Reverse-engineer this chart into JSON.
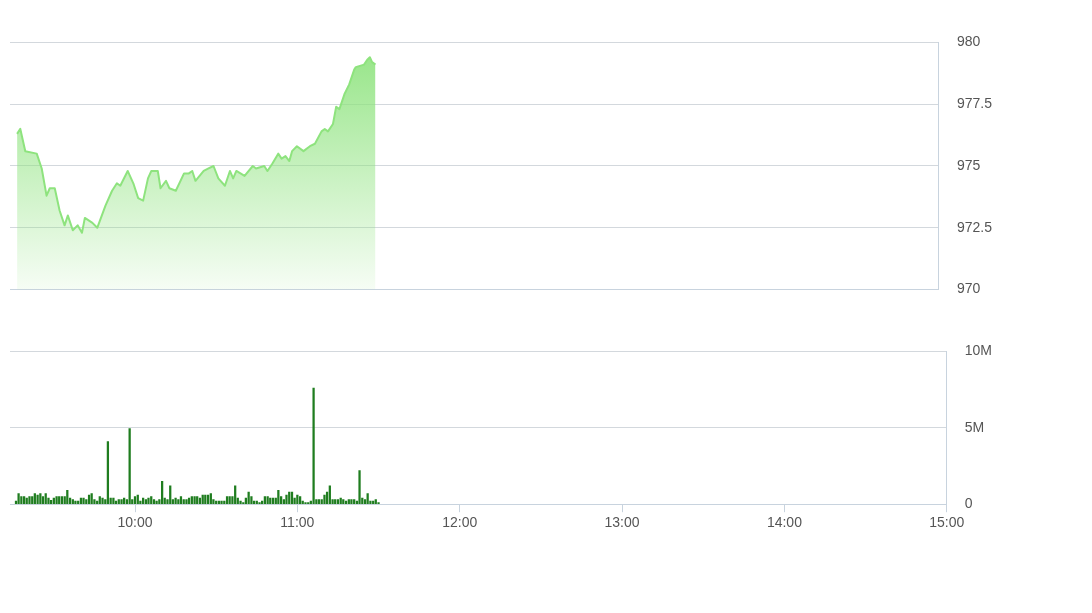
{
  "chart_data": [
    {
      "type": "area",
      "tick_labels": "y",
      "grid": "y",
      "xlim": [
        9.23,
        15
      ],
      "ylim": [
        970,
        980
      ],
      "yticks": [
        970,
        972.5,
        975,
        977.5,
        980
      ],
      "x": [
        9.274,
        9.294,
        9.325,
        9.396,
        9.427,
        9.457,
        9.477,
        9.508,
        9.538,
        9.569,
        9.589,
        9.62,
        9.65,
        9.677,
        9.695,
        9.742,
        9.772,
        9.823,
        9.864,
        9.894,
        9.915,
        9.961,
        9.996,
        10.026,
        10.057,
        10.087,
        10.108,
        10.148,
        10.165,
        10.199,
        10.22,
        10.26,
        10.311,
        10.341,
        10.362,
        10.382,
        10.433,
        10.463,
        10.494,
        10.524,
        10.565,
        10.596,
        10.616,
        10.636,
        10.687,
        10.738,
        10.758,
        10.809,
        10.829,
        10.86,
        10.896,
        10.917,
        10.941,
        10.965,
        10.982,
        11.012,
        11.053,
        11.093,
        11.124,
        11.165,
        11.185,
        11.205,
        11.236,
        11.256,
        11.276,
        11.307,
        11.337,
        11.368,
        11.378,
        11.429,
        11.449,
        11.465,
        11.479,
        11.5
      ],
      "series": [
        {
          "color": "#8ee37e",
          "values": [
            976.3,
            976.5,
            975.6,
            975.5,
            974.9,
            973.8,
            974.1,
            974.1,
            973.2,
            972.6,
            973,
            972.4,
            972.6,
            972.3,
            972.9,
            972.7,
            972.5,
            973.4,
            974,
            974.3,
            974.2,
            974.8,
            974.3,
            973.7,
            973.6,
            974.5,
            974.8,
            974.8,
            974.1,
            974.4,
            974.1,
            974,
            974.7,
            974.7,
            974.8,
            974.4,
            974.8,
            974.9,
            975,
            974.5,
            974.2,
            974.8,
            974.5,
            974.8,
            974.6,
            975,
            974.9,
            975,
            974.8,
            975.1,
            975.5,
            975.3,
            975.4,
            975.2,
            975.6,
            975.8,
            975.6,
            975.8,
            975.9,
            976.4,
            976.5,
            976.4,
            976.7,
            977.4,
            977.3,
            977.9,
            978.3,
            978.9,
            979,
            979.1,
            979.3,
            979.4,
            979.2,
            979.1
          ]
        }
      ]
    },
    {
      "type": "bar",
      "grid": "y",
      "xlim": [
        9.23,
        15
      ],
      "xticks": [
        {
          "value": 10,
          "label": "10:00"
        },
        {
          "value": 11,
          "label": "11:00"
        },
        {
          "value": 12,
          "label": "12:00"
        },
        {
          "value": 13,
          "label": "13:00"
        },
        {
          "value": 14,
          "label": "14:00"
        },
        {
          "value": 15,
          "label": "15:00"
        }
      ],
      "ylim": [
        0,
        10
      ],
      "yticks": [
        {
          "value": 0,
          "label": "0"
        },
        {
          "value": 5,
          "label": "5M"
        },
        {
          "value": 10,
          "label": "10M"
        }
      ],
      "x": [
        9.267,
        9.283,
        9.3,
        9.317,
        9.333,
        9.35,
        9.367,
        9.383,
        9.4,
        9.417,
        9.433,
        9.45,
        9.467,
        9.483,
        9.5,
        9.517,
        9.533,
        9.55,
        9.567,
        9.583,
        9.6,
        9.617,
        9.633,
        9.65,
        9.667,
        9.683,
        9.7,
        9.717,
        9.733,
        9.75,
        9.767,
        9.783,
        9.8,
        9.817,
        9.833,
        9.85,
        9.867,
        9.883,
        9.9,
        9.917,
        9.933,
        9.95,
        9.967,
        9.983,
        10,
        10.017,
        10.033,
        10.05,
        10.067,
        10.083,
        10.1,
        10.117,
        10.133,
        10.15,
        10.167,
        10.183,
        10.2,
        10.217,
        10.233,
        10.25,
        10.267,
        10.283,
        10.3,
        10.317,
        10.333,
        10.35,
        10.367,
        10.383,
        10.4,
        10.417,
        10.433,
        10.45,
        10.467,
        10.483,
        10.5,
        10.517,
        10.533,
        10.55,
        10.567,
        10.583,
        10.6,
        10.617,
        10.633,
        10.65,
        10.667,
        10.683,
        10.7,
        10.717,
        10.733,
        10.75,
        10.767,
        10.783,
        10.8,
        10.817,
        10.833,
        10.85,
        10.867,
        10.883,
        10.9,
        10.917,
        10.933,
        10.95,
        10.967,
        10.983,
        11,
        11.017,
        11.033,
        11.05,
        11.067,
        11.083,
        11.1,
        11.117,
        11.133,
        11.15,
        11.167,
        11.183,
        11.2,
        11.217,
        11.233,
        11.25,
        11.267,
        11.283,
        11.3,
        11.317,
        11.333,
        11.35,
        11.367,
        11.383,
        11.4,
        11.417,
        11.433,
        11.45,
        11.467,
        11.483,
        11.5
      ],
      "series": [
        {
          "color": "#1f7d1f",
          "values": [
            0.2,
            0.7,
            0.5,
            0.5,
            0.4,
            0.5,
            0.5,
            0.7,
            0.6,
            0.7,
            0.5,
            0.7,
            0.4,
            0.25,
            0.4,
            0.5,
            0.5,
            0.5,
            0.5,
            0.9,
            0.4,
            0.3,
            0.2,
            0.2,
            0.4,
            0.4,
            0.3,
            0.6,
            0.7,
            0.3,
            0.2,
            0.5,
            0.4,
            0.3,
            4.1,
            0.4,
            0.4,
            0.2,
            0.3,
            0.3,
            0.4,
            0.3,
            4.95,
            0.3,
            0.5,
            0.6,
            0.2,
            0.4,
            0.3,
            0.4,
            0.5,
            0.3,
            0.2,
            0.3,
            1.5,
            0.4,
            0.3,
            1.2,
            0.3,
            0.4,
            0.3,
            0.5,
            0.3,
            0.3,
            0.4,
            0.5,
            0.5,
            0.5,
            0.4,
            0.6,
            0.6,
            0.6,
            0.7,
            0.3,
            0.2,
            0.2,
            0.2,
            0.2,
            0.5,
            0.5,
            0.5,
            1.2,
            0.4,
            0.2,
            0.1,
            0.4,
            0.8,
            0.5,
            0.2,
            0.2,
            0.1,
            0.2,
            0.5,
            0.5,
            0.4,
            0.4,
            0.4,
            0.9,
            0.5,
            0.3,
            0.6,
            0.8,
            0.8,
            0.4,
            0.6,
            0.5,
            0.2,
            0.1,
            0.1,
            0.2,
            7.6,
            0.3,
            0.3,
            0.3,
            0.6,
            0.8,
            1.2,
            0.3,
            0.3,
            0.3,
            0.4,
            0.3,
            0.2,
            0.3,
            0.3,
            0.3,
            0.2,
            2.2,
            0.4,
            0.3,
            0.7,
            0.2,
            0.2,
            0.3,
            0.1
          ]
        }
      ]
    }
  ]
}
